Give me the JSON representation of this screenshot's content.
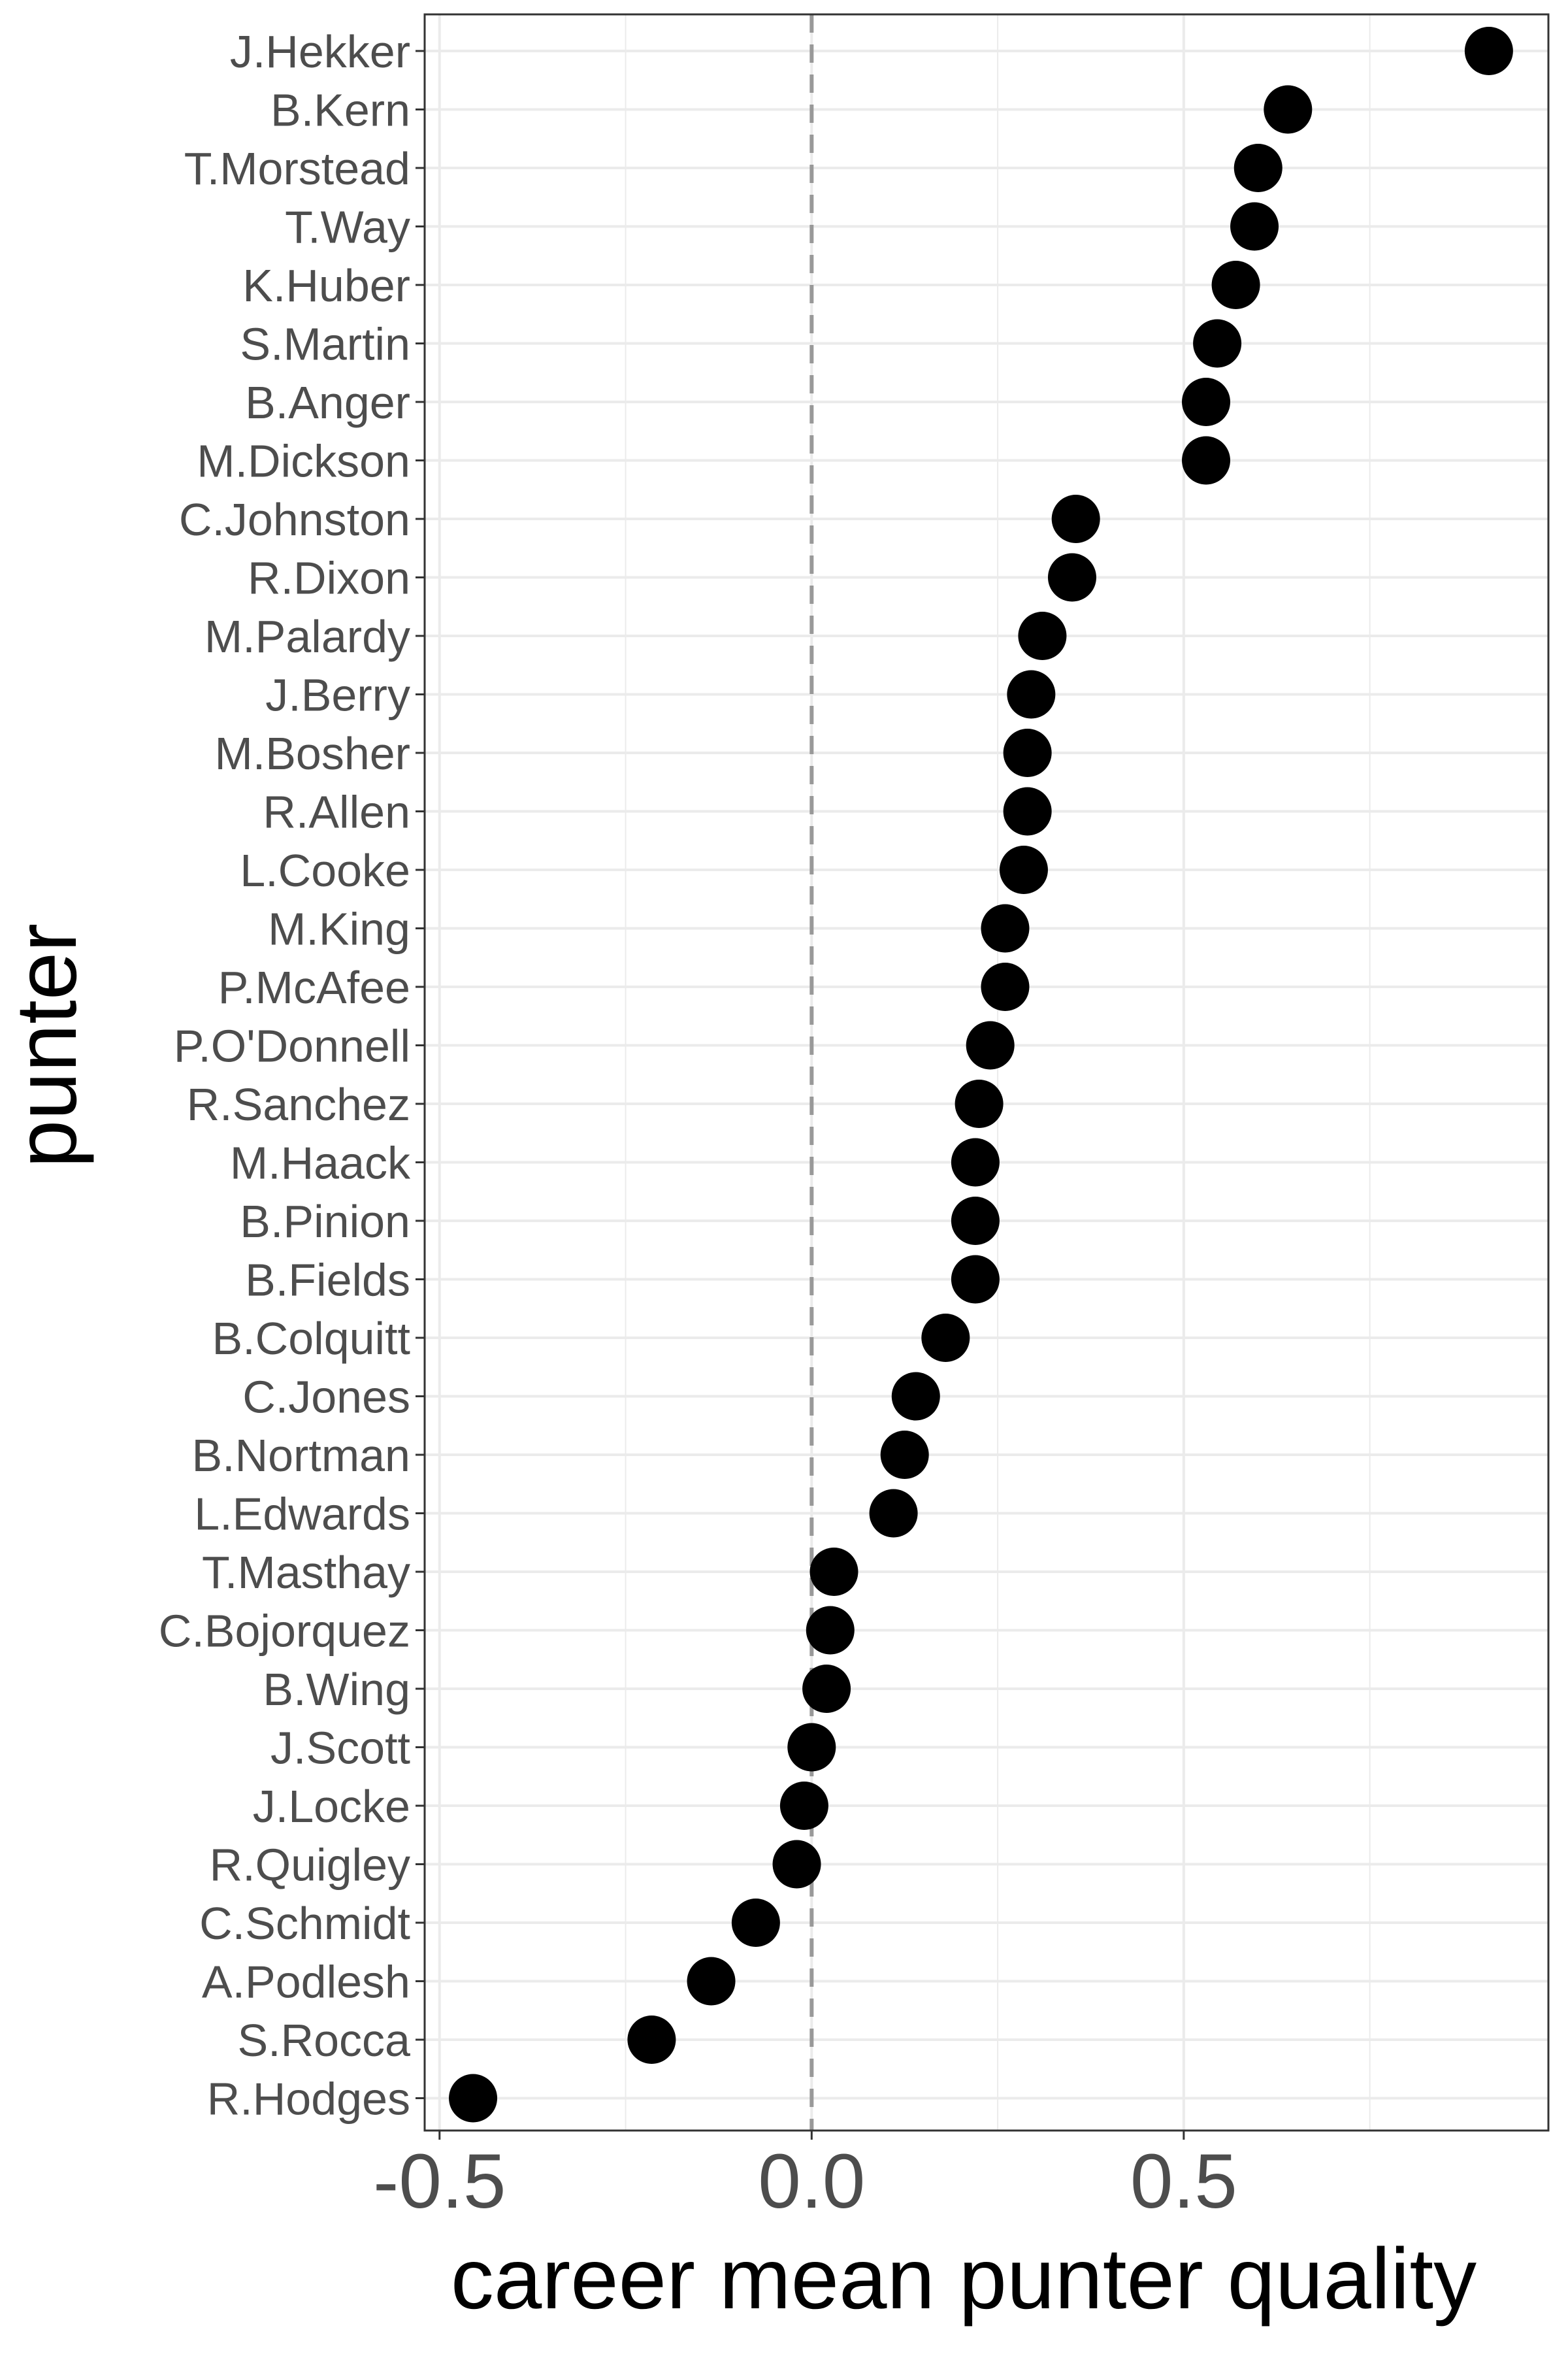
{
  "chart_data": {
    "type": "scatter",
    "xlabel": "career mean punter quality",
    "ylabel": "punter",
    "xlim": [
      -0.52,
      0.99
    ],
    "x_ticks": [
      -0.5,
      0.0,
      0.5
    ],
    "x_tick_labels": [
      "-0.5",
      "0.0",
      "0.5"
    ],
    "reference_line": {
      "x": 0.0,
      "style": "dashed",
      "color": "#999999"
    },
    "grid": true,
    "legend": "none",
    "colors": {
      "points": "#000000",
      "grid": "#ebebeb",
      "panel_border": "#333333",
      "tick_text": "#4d4d4d",
      "title_text": "#000000"
    },
    "points": [
      {
        "name": "J.Hekker",
        "value": 0.91
      },
      {
        "name": "B.Kern",
        "value": 0.64
      },
      {
        "name": "T.Morstead",
        "value": 0.6
      },
      {
        "name": "T.Way",
        "value": 0.595
      },
      {
        "name": "K.Huber",
        "value": 0.57
      },
      {
        "name": "S.Martin",
        "value": 0.545
      },
      {
        "name": "B.Anger",
        "value": 0.53
      },
      {
        "name": "M.Dickson",
        "value": 0.53
      },
      {
        "name": "C.Johnston",
        "value": 0.355
      },
      {
        "name": "R.Dixon",
        "value": 0.35
      },
      {
        "name": "M.Palardy",
        "value": 0.31
      },
      {
        "name": "J.Berry",
        "value": 0.295
      },
      {
        "name": "M.Bosher",
        "value": 0.29
      },
      {
        "name": "R.Allen",
        "value": 0.29
      },
      {
        "name": "L.Cooke",
        "value": 0.285
      },
      {
        "name": "M.King",
        "value": 0.26
      },
      {
        "name": "P.McAfee",
        "value": 0.26
      },
      {
        "name": "P.O'Donnell",
        "value": 0.24
      },
      {
        "name": "R.Sanchez",
        "value": 0.225
      },
      {
        "name": "M.Haack",
        "value": 0.22
      },
      {
        "name": "B.Pinion",
        "value": 0.22
      },
      {
        "name": "B.Fields",
        "value": 0.22
      },
      {
        "name": "B.Colquitt",
        "value": 0.18
      },
      {
        "name": "C.Jones",
        "value": 0.14
      },
      {
        "name": "B.Nortman",
        "value": 0.125
      },
      {
        "name": "L.Edwards",
        "value": 0.11
      },
      {
        "name": "T.Masthay",
        "value": 0.03
      },
      {
        "name": "C.Bojorquez",
        "value": 0.025
      },
      {
        "name": "B.Wing",
        "value": 0.02
      },
      {
        "name": "J.Scott",
        "value": 0.0
      },
      {
        "name": "J.Locke",
        "value": -0.01
      },
      {
        "name": "R.Quigley",
        "value": -0.02
      },
      {
        "name": "C.Schmidt",
        "value": -0.075
      },
      {
        "name": "A.Podlesh",
        "value": -0.135
      },
      {
        "name": "S.Rocca",
        "value": -0.215
      },
      {
        "name": "R.Hodges",
        "value": -0.455
      }
    ]
  }
}
